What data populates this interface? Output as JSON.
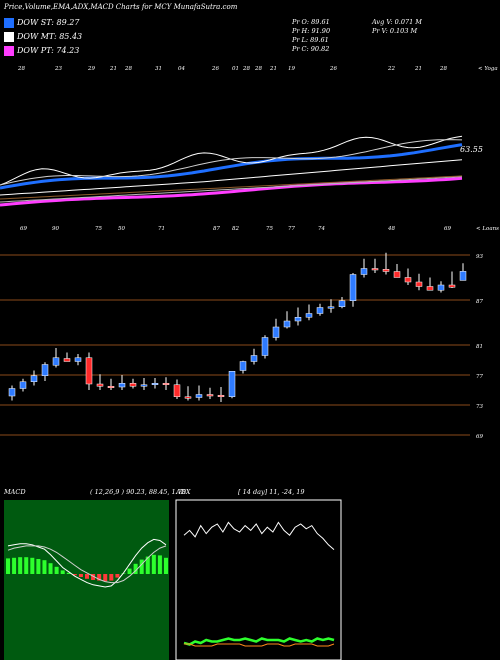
{
  "header": {
    "title": "Price,Volume,EMA,ADX,MACD Charts for MCY MunafaSutra.com"
  },
  "legend": [
    {
      "label": "DOW ST: 89.27",
      "color": "#1f6fff"
    },
    {
      "label": "DOW MT: 85.43",
      "color": "#ffffff"
    },
    {
      "label": "DOW PT: 74.23",
      "color": "#ff3dff"
    }
  ],
  "info": {
    "pr_o": "Pr  O: 89.61",
    "pr_h": "Pr  H: 91.90",
    "pr_l": "Pr  L: 89.61",
    "pr_c": "Pr  C: 90.82",
    "avg_v": "Avg V: 0.071 M",
    "pr_v": "Pr  V: 0.103 M"
  },
  "top_labels": [
    "28",
    "23",
    "29",
    "21",
    "28",
    "31",
    "04",
    "26",
    "01",
    "28",
    "28",
    "21",
    "19",
    "26",
    "22",
    "21",
    "28"
  ],
  "top_right_label": "< Yoga",
  "mid_labels": [
    "69",
    "90",
    "75",
    "50",
    "71",
    "87",
    "82",
    "75",
    "77",
    "74",
    "48",
    "69"
  ],
  "mid_right_label": "< Loans",
  "ema_value_label": "63.55",
  "price_axis": [
    "93",
    "87",
    "81",
    "77",
    "73",
    "69"
  ],
  "macd": {
    "title": "MACD",
    "values": "( 12,26,9 ) 90.23, 88.45, 1.78"
  },
  "adx": {
    "title": "ADX",
    "values": "[ 14  day] 11, -24, 19"
  },
  "chart_data": [
    {
      "type": "candlestick",
      "title": "",
      "price_levels": [
        93,
        87,
        81,
        77,
        73,
        69
      ],
      "series": [
        {
          "name": "candles",
          "open": [
            74.2,
            75.2,
            76.1,
            76.9,
            78.3,
            79.2,
            78.8,
            79.3,
            75.8,
            75.5,
            75.4,
            75.9,
            75.5,
            75.7,
            75.9,
            75.7,
            74.1,
            74.0,
            74.4,
            74.3,
            74.1,
            77.6,
            78.8,
            79.6,
            82.0,
            83.4,
            84.2,
            84.7,
            85.2,
            86.0,
            86.1,
            86.9,
            90.4,
            91.2,
            91.1,
            90.8,
            90.0,
            89.4,
            88.8,
            88.3,
            89.0,
            89.61
          ],
          "high": [
            75.6,
            76.5,
            77.6,
            78.7,
            80.6,
            80.0,
            79.8,
            80.0,
            77.1,
            76.5,
            77.0,
            76.5,
            76.6,
            76.6,
            76.7,
            76.4,
            75.5,
            75.6,
            75.3,
            75.4,
            77.5,
            78.9,
            80.5,
            82.3,
            84.5,
            85.5,
            86.0,
            86.4,
            86.5,
            87.1,
            87.4,
            90.6,
            92.5,
            92.5,
            93.3,
            91.8,
            91.2,
            90.5,
            90.0,
            89.5,
            90.8,
            91.9
          ],
          "low": [
            73.6,
            74.8,
            75.6,
            76.2,
            78.0,
            78.8,
            78.3,
            75.0,
            75.0,
            75.0,
            75.0,
            75.2,
            75.0,
            75.2,
            75.0,
            73.8,
            73.6,
            73.6,
            73.8,
            73.4,
            73.9,
            77.2,
            78.4,
            79.2,
            81.6,
            83.2,
            83.6,
            84.3,
            84.9,
            85.3,
            85.9,
            86.1,
            90.0,
            90.6,
            90.4,
            90.0,
            89.0,
            88.3,
            88.4,
            88.0,
            88.6,
            89.61
          ],
          "close": [
            75.2,
            76.1,
            76.9,
            78.4,
            79.3,
            78.8,
            79.3,
            75.8,
            75.5,
            75.4,
            75.9,
            75.5,
            75.7,
            75.9,
            75.7,
            74.1,
            74.0,
            74.4,
            74.3,
            74.1,
            77.5,
            78.8,
            79.6,
            82.0,
            83.4,
            84.2,
            84.7,
            85.2,
            86.0,
            86.1,
            86.9,
            90.4,
            91.2,
            91.1,
            90.8,
            90.0,
            89.4,
            88.8,
            88.3,
            89.0,
            88.7,
            90.82
          ]
        }
      ]
    },
    {
      "type": "line",
      "title": "MACD",
      "series": [
        {
          "name": "MACD",
          "values": [
            2.6,
            2.7,
            2.8,
            2.8,
            2.7,
            2.5,
            2.3,
            1.8,
            1.2,
            0.6,
            0.2,
            -0.2,
            -0.5,
            -0.8,
            -1.0,
            -1.1,
            -1.2,
            -1.1,
            -0.6,
            0.1,
            0.9,
            1.7,
            2.4,
            2.9,
            3.2,
            3.1,
            2.7
          ]
        },
        {
          "name": "Signal",
          "values": [
            2.2,
            2.4,
            2.5,
            2.6,
            2.6,
            2.6,
            2.5,
            2.3,
            2.0,
            1.6,
            1.2,
            0.8,
            0.4,
            0.1,
            -0.2,
            -0.5,
            -0.7,
            -0.8,
            -0.8,
            -0.6,
            -0.2,
            0.3,
            0.9,
            1.5,
            2.0,
            2.4,
            2.6
          ]
        }
      ]
    },
    {
      "type": "line",
      "title": "ADX",
      "series": [
        {
          "name": "+DI",
          "values": [
            28,
            31,
            27,
            34,
            29,
            33,
            35,
            30,
            36,
            32,
            30,
            34,
            31,
            35,
            29,
            33,
            30,
            36,
            31,
            28,
            33,
            35,
            32,
            34,
            29,
            26,
            22,
            19
          ]
        },
        {
          "name": "-DI",
          "values": [
            6,
            5,
            7,
            6,
            8,
            7,
            7,
            8,
            9,
            8,
            8,
            9,
            8,
            7,
            9,
            8,
            8,
            8,
            7,
            9,
            8,
            7,
            8,
            7,
            9,
            8,
            9,
            8
          ]
        },
        {
          "name": "ADX",
          "values": [
            3,
            3,
            2,
            2,
            2,
            2,
            3,
            3,
            3,
            3,
            3,
            2,
            2,
            2,
            2,
            3,
            3,
            3,
            2,
            2,
            3,
            3,
            3,
            3,
            2,
            2,
            2,
            3
          ]
        }
      ]
    }
  ]
}
